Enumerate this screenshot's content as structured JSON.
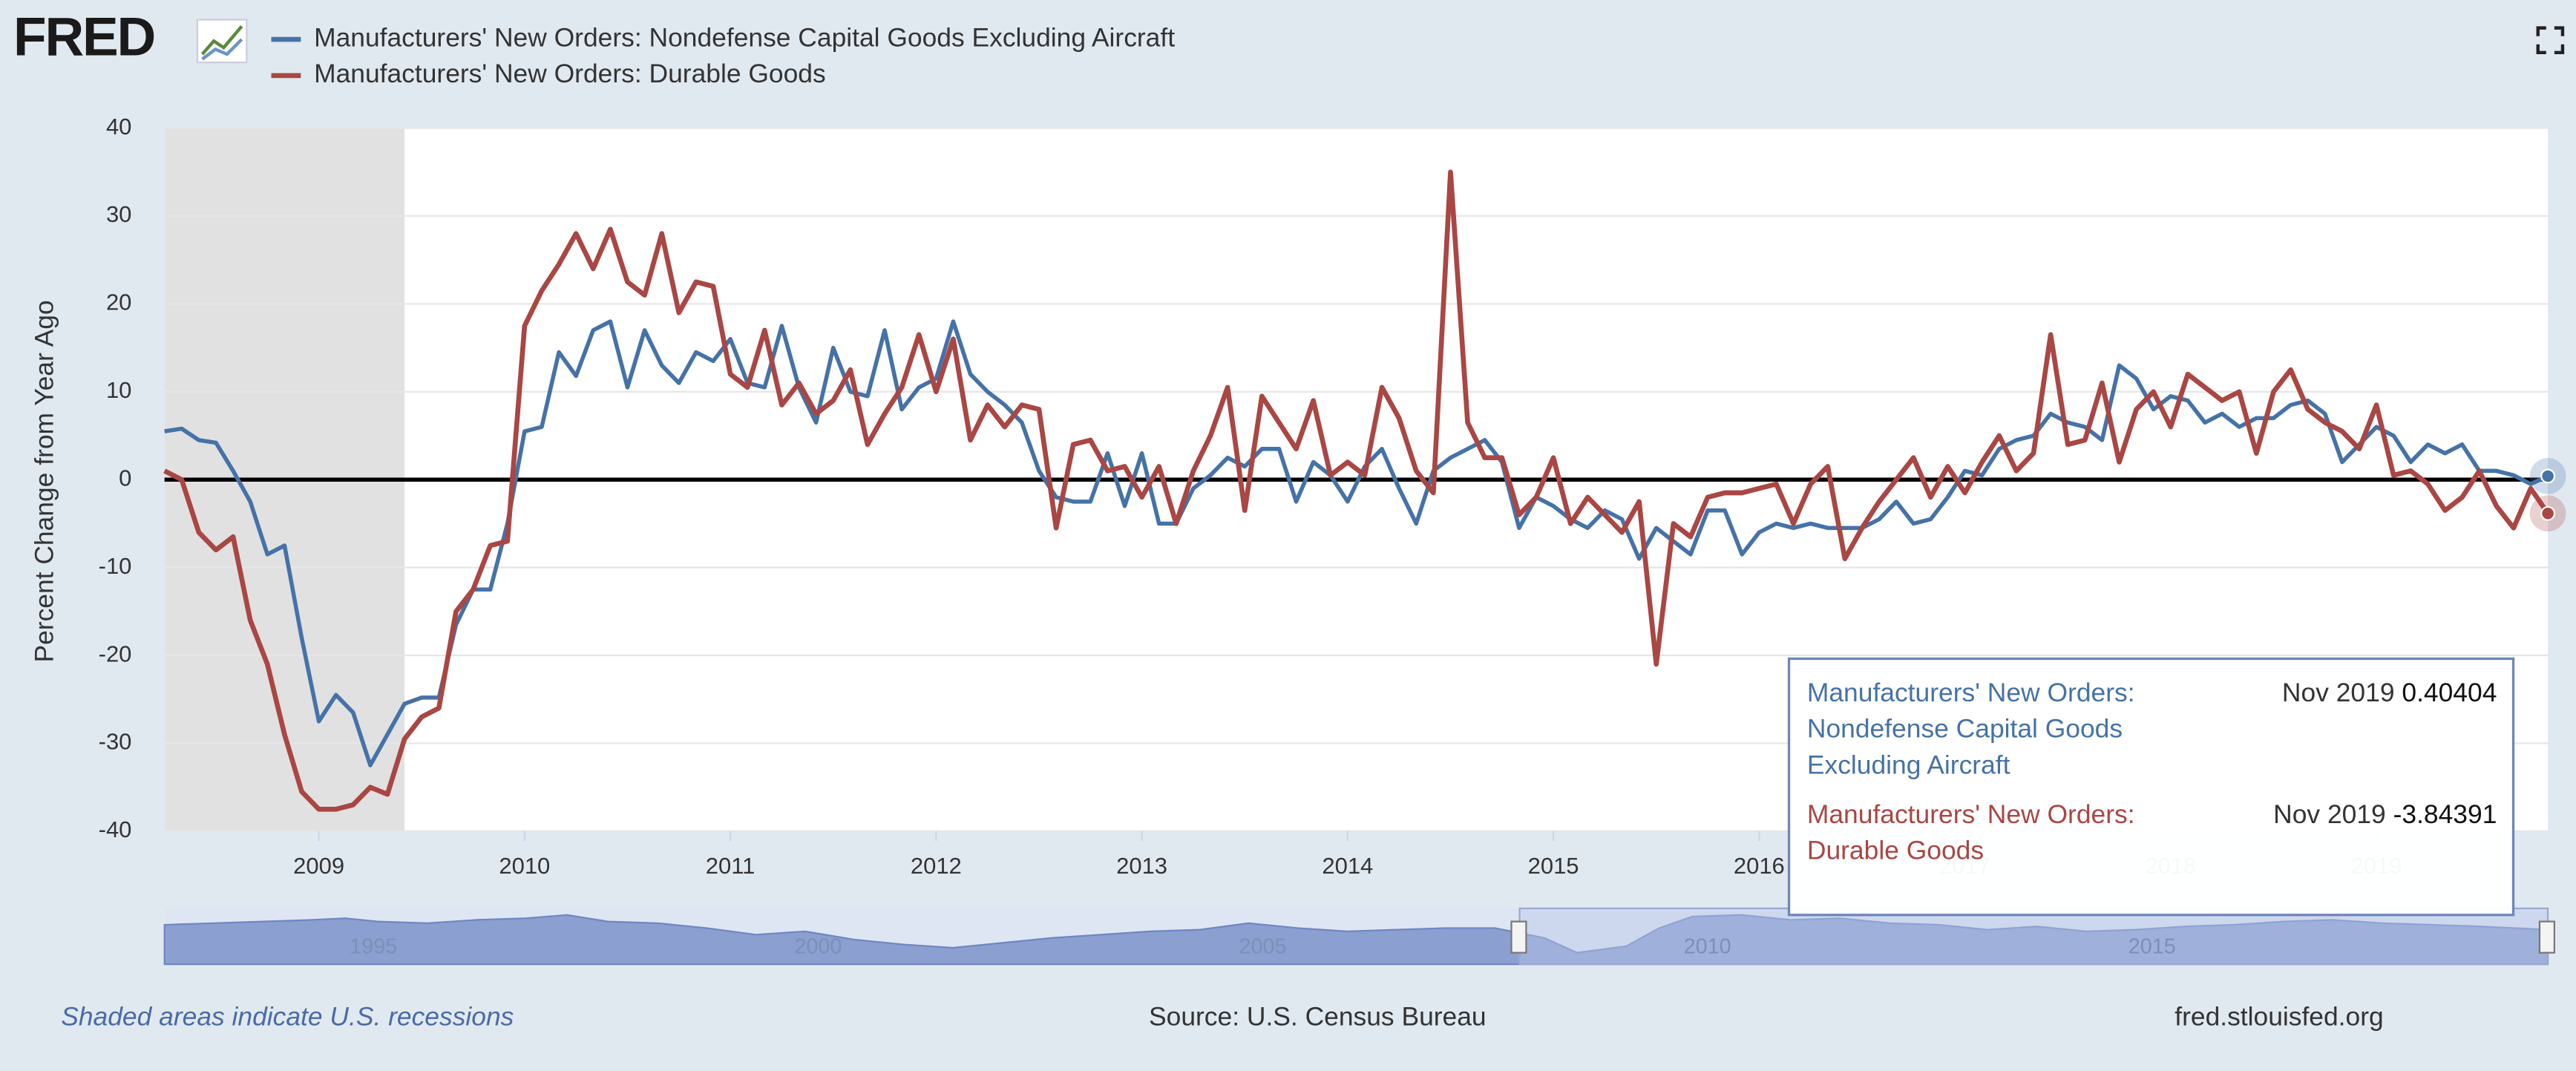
{
  "logo": "FRED",
  "chart_data": {
    "type": "line",
    "series": [
      {
        "name": "Manufacturers' New Orders: Nondefense Capital Goods Excluding Aircraft",
        "color": "#4572a7",
        "values": [
          5.5,
          5.8,
          4.5,
          4.2,
          1,
          -2.5,
          -8.5,
          -7.5,
          -18,
          -27.5,
          -24.5,
          -26.5,
          -32.5,
          -29,
          -25.5,
          -24.8,
          -24.8,
          -16.5,
          -12.5,
          -12.5,
          -5,
          5.5,
          6,
          14.5,
          11.8,
          17,
          18,
          10.5,
          17,
          13,
          11,
          14.5,
          13.5,
          16,
          11,
          10.5,
          17.5,
          10.5,
          6.5,
          15,
          10,
          9.5,
          17,
          8,
          10.5,
          11.5,
          18,
          12,
          10,
          8.5,
          6.5,
          1,
          -2,
          -2.5,
          -2.5,
          3,
          -3,
          3,
          -5,
          -5,
          -1,
          0.5,
          2.5,
          1.5,
          3.5,
          3.5,
          -2.5,
          2,
          0.5,
          -2.5,
          1.5,
          3.5,
          -1,
          -5,
          1,
          2.5,
          3.5,
          4.5,
          2,
          -5.5,
          -2,
          -3,
          -4.5,
          -5.5,
          -3.5,
          -4.5,
          -9,
          -5.5,
          -7,
          -8.5,
          -3.5,
          -3.5,
          -8.5,
          -6,
          -5,
          -5.5,
          -5,
          -5.5,
          -5.5,
          -5.5,
          -4.5,
          -2.5,
          -5,
          -4.5,
          -2,
          1,
          0.5,
          3.5,
          4.5,
          5,
          7.5,
          6.5,
          6,
          4.5,
          13,
          11.5,
          8,
          9.5,
          9,
          6.5,
          7.5,
          6,
          7,
          7,
          8.5,
          9,
          7.5,
          2,
          4,
          6,
          5,
          2,
          4,
          3,
          4,
          1,
          1,
          0.5,
          -0.5,
          0.40404
        ]
      },
      {
        "name": "Manufacturers' New Orders: Durable Goods",
        "color": "#aa4643",
        "values": [
          1,
          0,
          -6,
          -8,
          -6.5,
          -16,
          -21,
          -29,
          -35.5,
          -37.5,
          -37.5,
          -37,
          -35,
          -35.8,
          -29.5,
          -27,
          -26,
          -15,
          -12.5,
          -7.5,
          -7,
          17.5,
          21.5,
          24.5,
          28,
          24,
          28.5,
          22.5,
          21,
          28,
          19,
          22.5,
          22,
          12,
          10.5,
          17,
          8.5,
          11,
          7.5,
          9,
          12.5,
          4,
          7.5,
          10.5,
          16.5,
          10,
          16,
          4.5,
          8.5,
          6,
          8.5,
          8,
          -5.5,
          4,
          4.5,
          1,
          1.5,
          -2,
          1.5,
          -5,
          1,
          5,
          10.5,
          -3.5,
          9.5,
          6.5,
          3.5,
          9,
          0.5,
          2,
          0.5,
          10.5,
          7,
          1,
          -1.5,
          35,
          6.5,
          2.5,
          2.5,
          -4,
          -2,
          2.5,
          -5,
          -2,
          -4,
          -6,
          -2.5,
          -21,
          -5,
          -6.5,
          -2,
          -1.5,
          -1.5,
          -1,
          -0.5,
          -5,
          -0.5,
          1.5,
          -9,
          -5.5,
          -2.5,
          0,
          2.5,
          -2,
          1.5,
          -1.5,
          2,
          5,
          1,
          3,
          16.5,
          4,
          4.5,
          11,
          2,
          8,
          10,
          6,
          12,
          10.5,
          9,
          10,
          3,
          10,
          12.5,
          8,
          6.5,
          5.5,
          3.5,
          8.5,
          0.5,
          1,
          -0.5,
          -3.5,
          -2,
          1,
          -3,
          -5.5,
          -1,
          -3.84391
        ]
      }
    ],
    "x": [
      "2008-04",
      "2008-05",
      "2008-06",
      "2008-07",
      "2008-08",
      "2008-09",
      "2008-10",
      "2008-11",
      "2008-12",
      "2009-01",
      "2009-02",
      "2009-03",
      "2009-04",
      "2009-05",
      "2009-06",
      "2009-07",
      "2009-08",
      "2009-09",
      "2009-10",
      "2009-11",
      "2009-12",
      "2010-01",
      "2010-02",
      "2010-03",
      "2010-04",
      "2010-05",
      "2010-06",
      "2010-07",
      "2010-08",
      "2010-09",
      "2010-10",
      "2010-11",
      "2010-12",
      "2011-01",
      "2011-02",
      "2011-03",
      "2011-04",
      "2011-05",
      "2011-06",
      "2011-07",
      "2011-08",
      "2011-09",
      "2011-10",
      "2011-11",
      "2011-12",
      "2012-01",
      "2012-02",
      "2012-03",
      "2012-04",
      "2012-05",
      "2012-06",
      "2012-07",
      "2012-08",
      "2012-09",
      "2012-10",
      "2012-11",
      "2012-12",
      "2013-01",
      "2013-02",
      "2013-03",
      "2013-04",
      "2013-05",
      "2013-06",
      "2013-07",
      "2013-08",
      "2013-09",
      "2013-10",
      "2013-11",
      "2013-12",
      "2014-01",
      "2014-02",
      "2014-03",
      "2014-04",
      "2014-05",
      "2014-06",
      "2014-07",
      "2014-08",
      "2014-09",
      "2014-10",
      "2014-11",
      "2014-12",
      "2015-01",
      "2015-02",
      "2015-03",
      "2015-04",
      "2015-05",
      "2015-06",
      "2015-07",
      "2015-08",
      "2015-09",
      "2015-10",
      "2015-11",
      "2015-12",
      "2016-01",
      "2016-02",
      "2016-03",
      "2016-04",
      "2016-05",
      "2016-06",
      "2016-07",
      "2016-08",
      "2016-09",
      "2016-10",
      "2016-11",
      "2016-12",
      "2017-01",
      "2017-02",
      "2017-03",
      "2017-04",
      "2017-05",
      "2017-06",
      "2017-07",
      "2017-08",
      "2017-09",
      "2017-10",
      "2017-11",
      "2017-12",
      "2018-01",
      "2018-02",
      "2018-03",
      "2018-04",
      "2018-05",
      "2018-06",
      "2018-07",
      "2018-08",
      "2018-09",
      "2018-10",
      "2018-11",
      "2018-12",
      "2019-01",
      "2019-02",
      "2019-03",
      "2019-04",
      "2019-05",
      "2019-06",
      "2019-07",
      "2019-08",
      "2019-09",
      "2019-10",
      "2019-11"
    ],
    "xlim": [
      2008.25,
      2019.833
    ],
    "xticks": [
      2009,
      2010,
      2011,
      2012,
      2013,
      2014,
      2015,
      2016,
      2017,
      2018,
      2019
    ],
    "ylim": [
      -40,
      40
    ],
    "yticks": [
      -40,
      -30,
      -20,
      -10,
      0,
      10,
      20,
      30,
      40
    ],
    "ylabel": "Percent Change from Year Ago",
    "grid": true,
    "recessions": [
      [
        "2007-12",
        "2009-06"
      ]
    ],
    "recession_color": "#e1e1e1",
    "navigator": {
      "xlim": [
        1992.65,
        2019.45
      ],
      "xticks": [
        1995,
        2000,
        2005,
        2010,
        2015
      ]
    },
    "tooltip": {
      "date": "Nov 2019"
    },
    "note": "Shaded areas indicate U.S. recessions",
    "source": "Source: U.S. Census Bureau",
    "url": "fred.stlouisfed.org"
  }
}
